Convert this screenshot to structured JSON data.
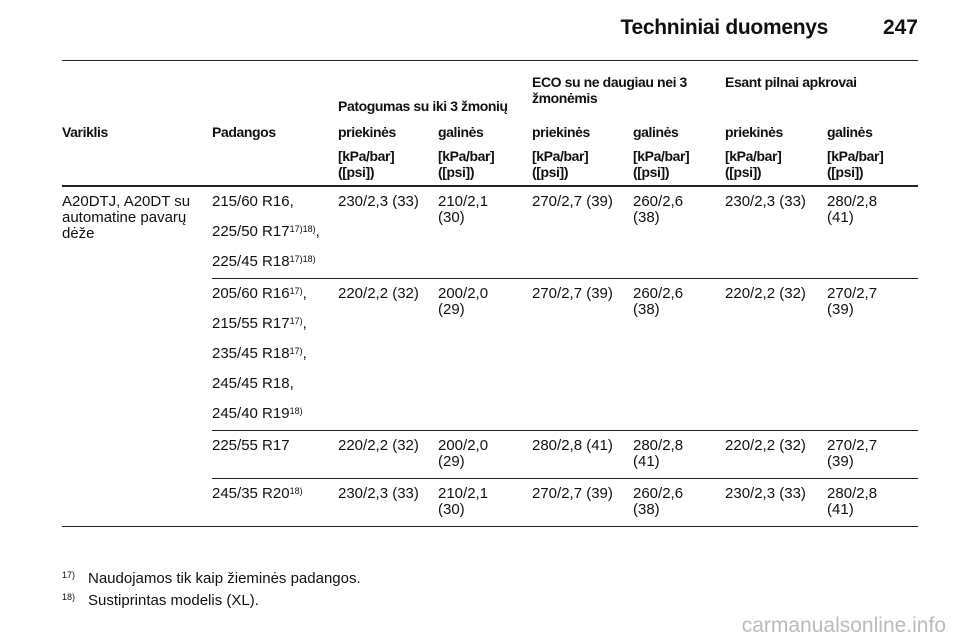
{
  "header": {
    "title": "Techniniai duomenys",
    "page": "247"
  },
  "table": {
    "groups": [
      "Patogumas su iki 3 žmonių",
      "ECO su ne daugiau nei 3 žmonėmis",
      "Esant pilnai apkrovai"
    ],
    "columns": [
      "Variklis",
      "Padangos",
      "priekinės",
      "galinės",
      "priekinės",
      "galinės",
      "priekinės",
      "galinės"
    ],
    "units": [
      "[kPa/bar] ([psi])",
      "[kPa/bar] ([psi])",
      "[kPa/bar] ([psi])",
      "[kPa/bar] ([psi])",
      "[kPa/bar] ([psi])",
      "[kPa/bar] ([psi])"
    ],
    "engine": "A20DTJ, A20DT su automatine pavarų dėže",
    "rows": [
      {
        "tires": [
          [
            {
              "text": "215/60 R16,"
            }
          ],
          [
            {
              "text": "225/50 R17"
            },
            {
              "sup": "17)18)"
            },
            {
              "text": ","
            }
          ],
          [
            {
              "text": "225/45 R18"
            },
            {
              "sup": "17)18)"
            }
          ]
        ],
        "pressures": [
          "230/2,3 (33)",
          "210/2,1 (30)",
          "270/2,7 (39)",
          "260/2,6 (38)",
          "230/2,3 (33)",
          "280/2,8 (41)"
        ]
      },
      {
        "tires": [
          [
            {
              "text": "205/60 R16"
            },
            {
              "sup": "17)"
            },
            {
              "text": ","
            }
          ],
          [
            {
              "text": "215/55 R17"
            },
            {
              "sup": "17)"
            },
            {
              "text": ","
            }
          ],
          [
            {
              "text": "235/45 R18"
            },
            {
              "sup": "17)"
            },
            {
              "text": ","
            }
          ],
          [
            {
              "text": "245/45 R18,"
            }
          ],
          [
            {
              "text": "245/40 R19"
            },
            {
              "sup": "18)"
            }
          ]
        ],
        "pressures": [
          "220/2,2 (32)",
          "200/2,0 (29)",
          "270/2,7 (39)",
          "260/2,6 (38)",
          "220/2,2 (32)",
          "270/2,7 (39)"
        ]
      },
      {
        "tires": [
          [
            {
              "text": "225/55 R17"
            }
          ]
        ],
        "pressures": [
          "220/2,2 (32)",
          "200/2,0 (29)",
          "280/2,8 (41)",
          "280/2,8 (41)",
          "220/2,2 (32)",
          "270/2,7 (39)"
        ]
      },
      {
        "tires": [
          [
            {
              "text": "245/35 R20"
            },
            {
              "sup": "18)"
            }
          ]
        ],
        "pressures": [
          "230/2,3 (33)",
          "210/2,1 (30)",
          "270/2,7 (39)",
          "260/2,6 (38)",
          "230/2,3 (33)",
          "280/2,8 (41)"
        ]
      }
    ]
  },
  "footnotes": [
    {
      "mark": "17)",
      "text": "Naudojamos tik kaip žieminės padangos."
    },
    {
      "mark": "18)",
      "text": "Sustiprintas modelis (XL)."
    }
  ],
  "watermark": "carmanualsonline.info"
}
